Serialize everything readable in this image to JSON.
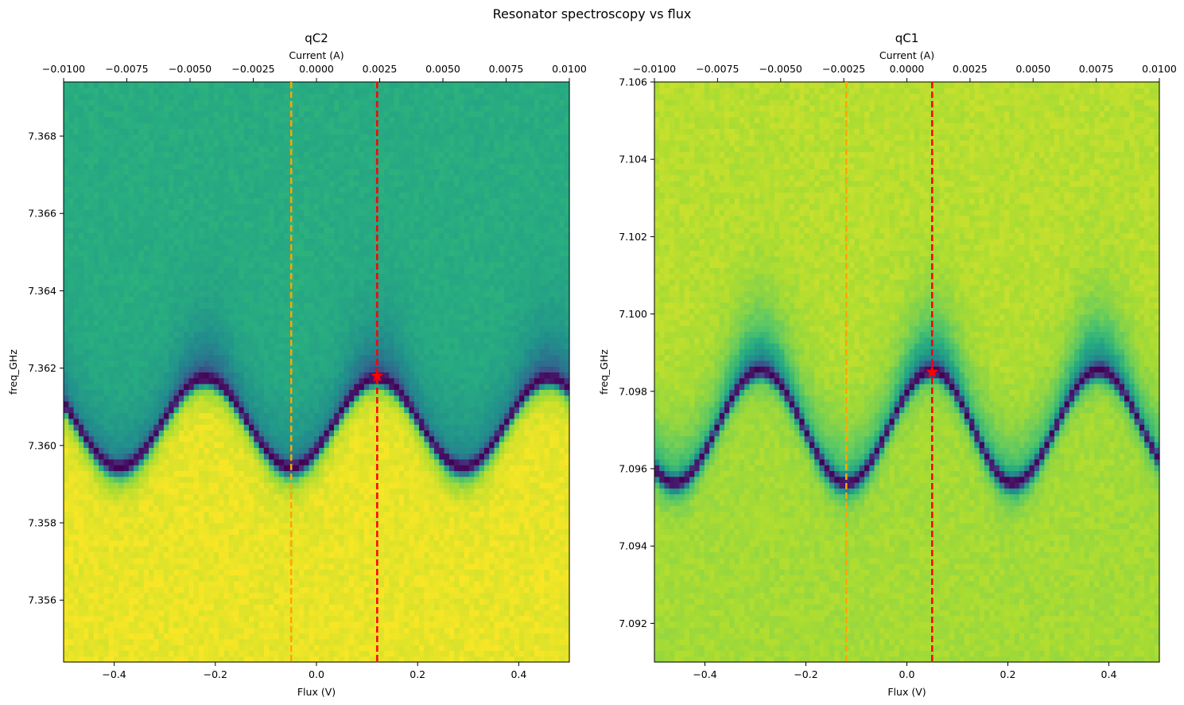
{
  "figure": {
    "suptitle": "Resonator spectroscopy vs flux"
  },
  "colors": {
    "cmap_low": "#440154",
    "cmap_mid": "#21918c",
    "cmap_high": "#fde725",
    "operating_point_line": "#ff0000",
    "sweet_spot_line": "#ffa500",
    "marker": "#ff0000"
  },
  "chart_data": [
    {
      "type": "heatmap",
      "title": "qC2",
      "xlabel": "Flux (V)",
      "ylabel": "freq_GHz",
      "secondary_xlabel": "Current (A)",
      "xlim": [
        -0.5,
        0.5
      ],
      "ylim": [
        7.3544,
        7.3694
      ],
      "secondary_xlim": [
        -0.01,
        0.01
      ],
      "xticks": [
        -0.4,
        -0.2,
        0.0,
        0.2,
        0.4
      ],
      "xtick_labels": [
        "−0.4",
        "−0.2",
        "0.0",
        "0.2",
        "0.4"
      ],
      "yticks": [
        7.356,
        7.358,
        7.36,
        7.362,
        7.364,
        7.366,
        7.368
      ],
      "ytick_labels": [
        "7.356",
        "7.358",
        "7.360",
        "7.362",
        "7.364",
        "7.366",
        "7.368"
      ],
      "secondary_xticks": [
        -0.01,
        -0.0075,
        -0.005,
        -0.0025,
        0.0,
        0.0025,
        0.005,
        0.0075,
        0.01
      ],
      "secondary_xtick_labels": [
        "−0.0100",
        "−0.0075",
        "−0.0050",
        "−0.0025",
        "0.0000",
        "0.0025",
        "0.0050",
        "0.0075",
        "0.0100"
      ],
      "resonance": {
        "center_GHz": 7.3606,
        "amplitude_GHz": 1.15,
        "peak_flux": [
          -0.22,
          0.12,
          0.46
        ],
        "dip_flux": [
          -0.39,
          -0.05,
          0.29
        ]
      },
      "sweet_spot_flux": -0.05,
      "operating_point": {
        "flux": 0.12,
        "freq_GHz": 7.3618
      },
      "background_above": 0.62,
      "background_below": 0.97
    },
    {
      "type": "heatmap",
      "title": "qC1",
      "xlabel": "Flux (V)",
      "ylabel": "freq_GHz",
      "secondary_xlabel": "Current (A)",
      "xlim": [
        -0.5,
        0.5
      ],
      "ylim": [
        7.091,
        7.106
      ],
      "secondary_xlim": [
        -0.01,
        0.01
      ],
      "xticks": [
        -0.4,
        -0.2,
        0.0,
        0.2,
        0.4
      ],
      "xtick_labels": [
        "−0.4",
        "−0.2",
        "0.0",
        "0.2",
        "0.4"
      ],
      "yticks": [
        7.092,
        7.094,
        7.096,
        7.098,
        7.1,
        7.102,
        7.104,
        7.106
      ],
      "ytick_labels": [
        "7.092",
        "7.094",
        "7.096",
        "7.098",
        "7.100",
        "7.102",
        "7.104",
        "7.106"
      ],
      "secondary_xticks": [
        -0.01,
        -0.0075,
        -0.005,
        -0.0025,
        0.0,
        0.0025,
        0.005,
        0.0075,
        0.01
      ],
      "secondary_xtick_labels": [
        "−0.0100",
        "−0.0075",
        "−0.0050",
        "−0.0025",
        "0.0000",
        "0.0025",
        "0.0050",
        "0.0075",
        "0.0100"
      ],
      "resonance": {
        "center_GHz": 7.0971,
        "amplitude_GHz": 1.45,
        "peak_flux": [
          -0.29,
          0.05,
          0.38
        ],
        "dip_flux": [
          -0.46,
          -0.12,
          0.21
        ]
      },
      "sweet_spot_flux": -0.12,
      "operating_point": {
        "flux": 0.05,
        "freq_GHz": 7.0985
      },
      "background_above": 0.9,
      "background_below": 0.87
    }
  ]
}
